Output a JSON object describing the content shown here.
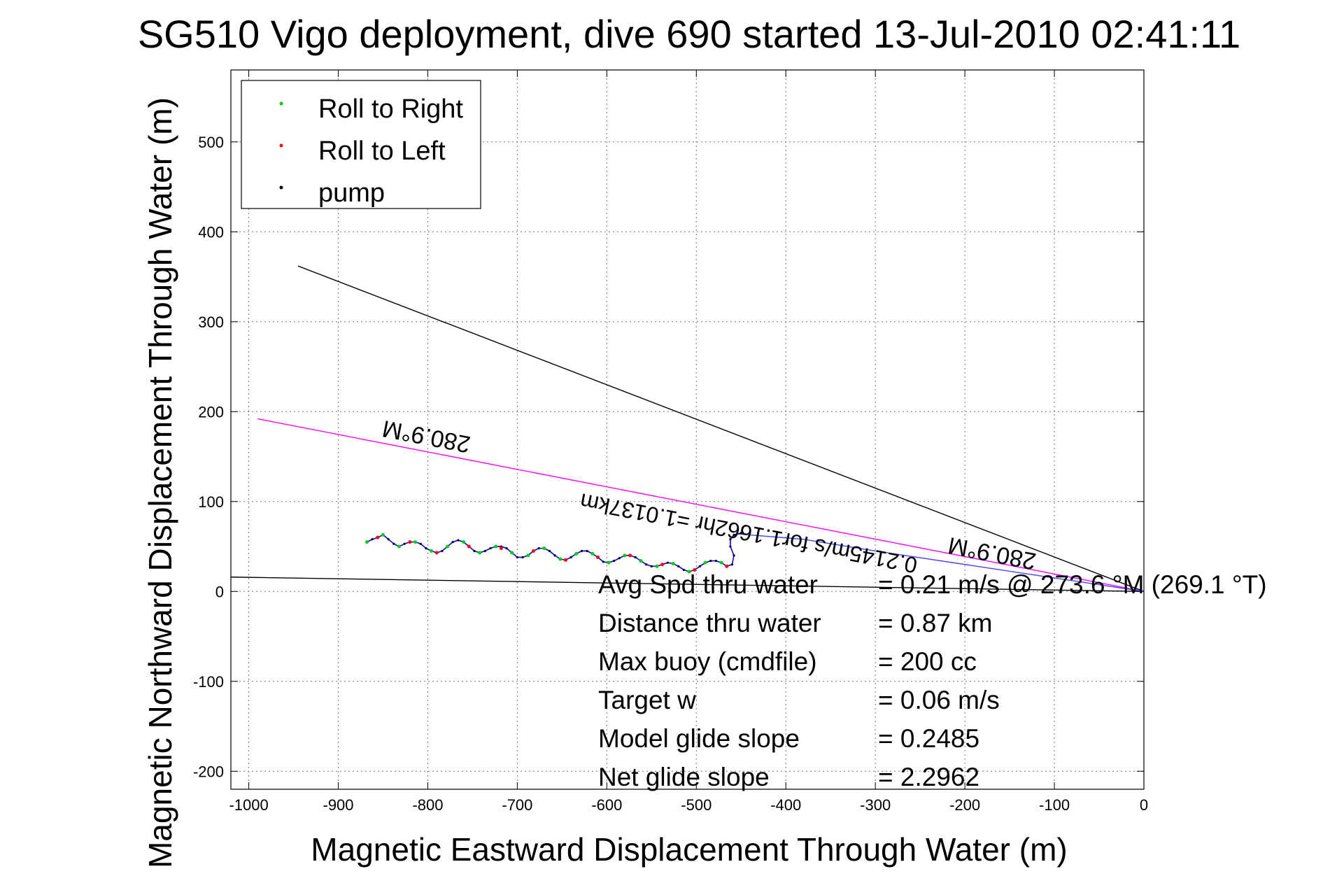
{
  "chart_data": {
    "type": "line",
    "title": "SG510 Vigo deployment, dive 690 started 13-Jul-2010 02:41:11",
    "xlabel": "Magnetic Eastward Displacement Through Water (m)",
    "ylabel": "Magnetic Northward Displacement Through Water (m)",
    "xlim": [
      -1020,
      0
    ],
    "ylim": [
      -220,
      580
    ],
    "xticks": [
      -1000,
      -900,
      -800,
      -700,
      -600,
      -500,
      -400,
      -300,
      -200,
      -100,
      0
    ],
    "yticks": [
      -200,
      -100,
      0,
      100,
      200,
      300,
      400,
      500
    ],
    "grid": true,
    "legend_position": "top-left",
    "legend": [
      {
        "label": "Roll to Right",
        "color": "#00cc00"
      },
      {
        "label": "Roll to Left",
        "color": "#ff0000"
      },
      {
        "label": "pump",
        "color": "#000000"
      }
    ],
    "lines": [
      {
        "color": "#000000",
        "x": [
          -945,
          0
        ],
        "y": [
          362,
          0
        ]
      },
      {
        "color": "#ff00ff",
        "x": [
          -990,
          0
        ],
        "y": [
          192,
          0
        ]
      },
      {
        "color": "#000000",
        "x": [
          -1020,
          0
        ],
        "y": [
          16,
          0
        ]
      },
      {
        "color": "#4444ff",
        "x": [
          -455,
          -380,
          -300,
          -200,
          -100,
          0
        ],
        "y": [
          64,
          58,
          45,
          30,
          15,
          0
        ]
      }
    ],
    "track": {
      "color": "#0000ff",
      "x": [
        -868,
        -862,
        -856,
        -850,
        -844,
        -838,
        -832,
        -826,
        -820,
        -814,
        -808,
        -802,
        -796,
        -790,
        -784,
        -778,
        -772,
        -766,
        -760,
        -754,
        -748,
        -742,
        -736,
        -730,
        -724,
        -718,
        -712,
        -706,
        -700,
        -694,
        -688,
        -682,
        -676,
        -670,
        -664,
        -658,
        -652,
        -646,
        -640,
        -634,
        -628,
        -622,
        -616,
        -610,
        -604,
        -598,
        -592,
        -586,
        -580,
        -574,
        -568,
        -562,
        -556,
        -550,
        -544,
        -538,
        -532,
        -526,
        -520,
        -514,
        -508,
        -502,
        -496,
        -490,
        -484,
        -478,
        -472,
        -466,
        -460,
        -458,
        -462,
        -462,
        -458,
        -450
      ],
      "y": [
        55,
        58,
        60,
        63,
        58,
        53,
        50,
        53,
        55,
        55,
        53,
        48,
        45,
        43,
        45,
        50,
        55,
        57,
        55,
        50,
        45,
        43,
        45,
        48,
        50,
        50,
        48,
        43,
        38,
        38,
        40,
        45,
        48,
        48,
        45,
        40,
        36,
        35,
        38,
        42,
        45,
        45,
        42,
        38,
        33,
        32,
        34,
        37,
        40,
        40,
        38,
        34,
        30,
        28,
        28,
        30,
        32,
        31,
        28,
        24,
        22,
        24,
        28,
        32,
        34,
        34,
        32,
        28,
        30,
        40,
        50,
        58,
        63,
        65
      ]
    },
    "roll_right_points": {
      "x": [
        -868,
        -850,
        -832,
        -814,
        -796,
        -778,
        -760,
        -742,
        -724,
        -706,
        -688,
        -670,
        -652,
        -634,
        -616,
        -598,
        -580,
        -562,
        -544,
        -526,
        -508,
        -490,
        -472
      ],
      "y": [
        55,
        63,
        50,
        55,
        45,
        50,
        55,
        43,
        50,
        43,
        40,
        48,
        36,
        42,
        42,
        32,
        40,
        34,
        28,
        31,
        22,
        32,
        32
      ]
    },
    "roll_left_points": {
      "x": [
        -856,
        -820,
        -790,
        -754,
        -718,
        -682,
        -646,
        -610,
        -574,
        -538,
        -502,
        -466
      ],
      "y": [
        60,
        55,
        43,
        50,
        48,
        45,
        35,
        38,
        40,
        30,
        24,
        28
      ]
    },
    "annotations": [
      {
        "text": "280.9°M",
        "rotated": true
      },
      {
        "text": "280.9°M",
        "rotated": true
      },
      {
        "text": "0.2145m/s for1.1662hr =1.0137km",
        "rotated": true
      }
    ],
    "stats": [
      {
        "label": "Avg Spd thru water",
        "value": "=  0.21 m/s @ 273.6 °M (269.1 °T)"
      },
      {
        "label": "Distance thru water",
        "value": "=  0.87 km"
      },
      {
        "label": "Max buoy (cmdfile)",
        "value": "= 200 cc"
      },
      {
        "label": "Target w",
        "value": "= 0.06 m/s"
      },
      {
        "label": "Model glide slope",
        "value": "= 0.2485"
      },
      {
        "label": "Net glide slope",
        "value": "= 2.2962"
      }
    ]
  }
}
